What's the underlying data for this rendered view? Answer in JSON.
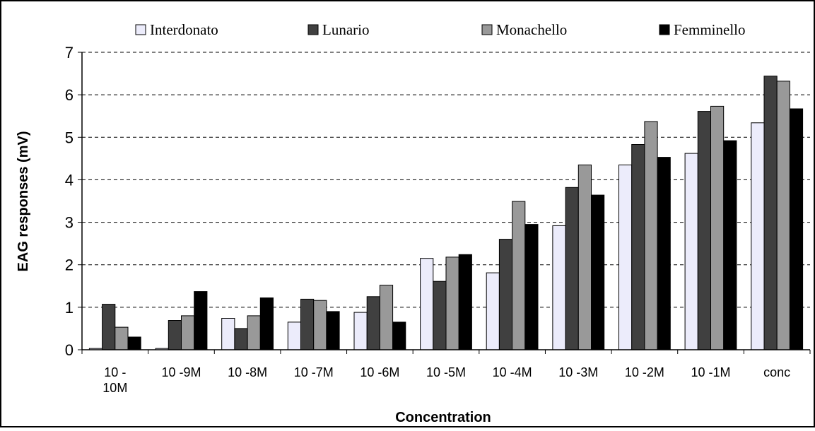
{
  "chart_data": {
    "type": "bar",
    "title": "",
    "xlabel": "Concentration",
    "ylabel": "EAG responses (mV)",
    "ylim": [
      0,
      7
    ],
    "yticks": [
      "0",
      "1",
      "2",
      "3",
      "4",
      "5",
      "6",
      "7"
    ],
    "grid": "horizontal dashed",
    "legend_position": "top",
    "categories": [
      "10 -10M",
      "10 -9M",
      "10 -8M",
      "10 -7M",
      "10 -6M",
      "10 -5M",
      "10 -4M",
      "10 -3M",
      "10 -2M",
      "10 -1M",
      "conc"
    ],
    "category_lines": [
      [
        "10 -",
        "10M"
      ],
      [
        "10 -9M"
      ],
      [
        "10 -8M"
      ],
      [
        "10 -7M"
      ],
      [
        "10 -6M"
      ],
      [
        "10 -5M"
      ],
      [
        "10 -4M"
      ],
      [
        "10 -3M"
      ],
      [
        "10 -2M"
      ],
      [
        "10 -1M"
      ],
      [
        "conc"
      ]
    ],
    "series": [
      {
        "name": "Interdonato",
        "color": "#ececfb",
        "values": [
          0.03,
          0.03,
          0.74,
          0.65,
          0.88,
          2.15,
          1.81,
          2.92,
          4.35,
          4.62,
          5.34
        ]
      },
      {
        "name": "Lunario",
        "color": "#404040",
        "values": [
          1.07,
          0.69,
          0.5,
          1.19,
          1.25,
          1.61,
          2.6,
          3.82,
          4.83,
          5.61,
          6.44
        ]
      },
      {
        "name": "Monachello",
        "color": "#999999",
        "values": [
          0.53,
          0.8,
          0.8,
          1.16,
          1.52,
          2.18,
          3.49,
          4.35,
          5.37,
          5.73,
          6.32
        ]
      },
      {
        "name": "Femminello",
        "color": "#000000",
        "values": [
          0.3,
          1.37,
          1.22,
          0.9,
          0.65,
          2.24,
          2.95,
          3.64,
          4.53,
          4.92,
          5.67
        ]
      }
    ]
  }
}
